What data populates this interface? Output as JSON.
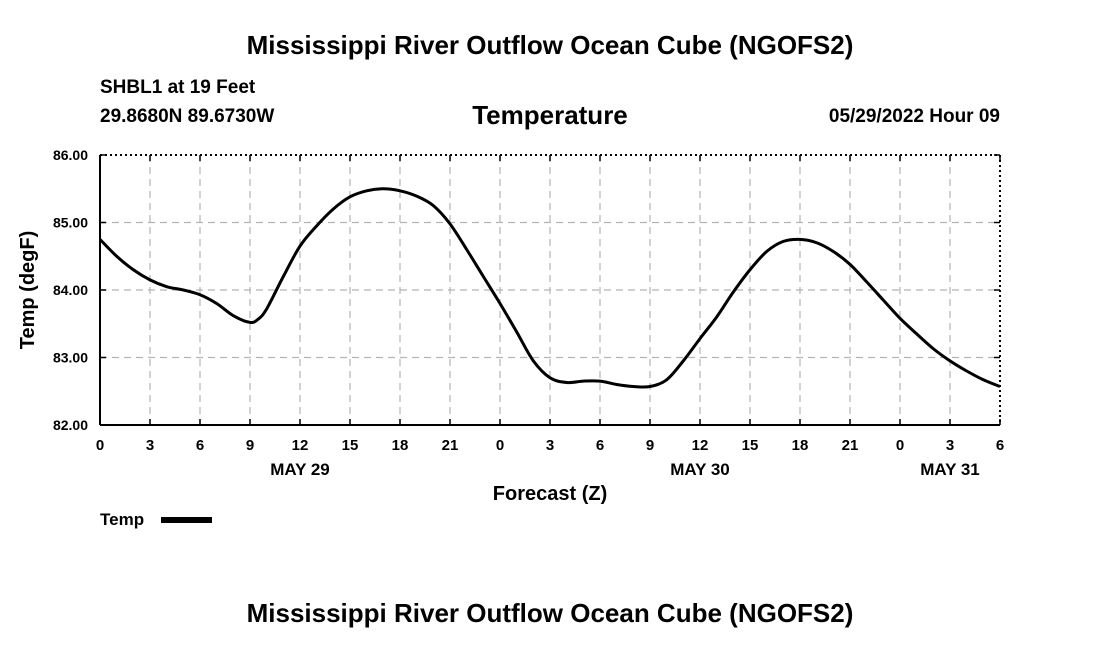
{
  "header": {
    "title": "Mississippi River Outflow Ocean Cube (NGOFS2)",
    "station": "SHBL1 at 19 Feet",
    "coords": "29.8680N  89.6730W",
    "subtitle": "Temperature",
    "datetime": "05/29/2022 Hour 09"
  },
  "footer": {
    "title": "Mississippi River Outflow Ocean Cube (NGOFS2)"
  },
  "chart_data": {
    "type": "line",
    "title": "Temperature",
    "xlabel": "Forecast (Z)",
    "ylabel": "Temp (degF)",
    "xlim": [
      0,
      54
    ],
    "ylim": [
      82.0,
      86.0
    ],
    "x_ticks": [
      0,
      3,
      6,
      9,
      12,
      15,
      18,
      21,
      24,
      27,
      30,
      33,
      36,
      39,
      42,
      45,
      48,
      51,
      54
    ],
    "x_tick_labels": [
      "0",
      "3",
      "6",
      "9",
      "12",
      "15",
      "18",
      "21",
      "0",
      "3",
      "6",
      "9",
      "12",
      "15",
      "18",
      "21",
      "0",
      "3",
      "6"
    ],
    "date_labels": [
      {
        "x": 12,
        "label": "MAY 29"
      },
      {
        "x": 36,
        "label": "MAY 30"
      },
      {
        "x": 51,
        "label": "MAY 31"
      }
    ],
    "y_ticks": [
      82.0,
      83.0,
      84.0,
      85.0,
      86.0
    ],
    "y_tick_labels": [
      "82.00",
      "83.00",
      "84.00",
      "85.00",
      "86.00"
    ],
    "grid": true,
    "legend": "bottom-left",
    "series": [
      {
        "name": "Temp",
        "color": "#000000",
        "x": [
          0,
          1,
          2,
          3,
          4,
          5,
          6,
          7,
          8,
          9,
          9.5,
          10,
          11,
          12,
          13,
          14,
          15,
          16,
          17,
          18,
          19,
          20,
          21,
          22,
          23,
          24,
          25,
          26,
          27,
          28,
          29,
          30,
          31,
          32,
          33,
          34,
          35,
          36,
          37,
          38,
          39,
          40,
          41,
          42,
          43,
          44,
          45,
          46,
          47,
          48,
          49,
          50,
          51,
          52,
          53,
          54
        ],
        "values": [
          84.75,
          84.5,
          84.3,
          84.15,
          84.05,
          84.0,
          83.93,
          83.8,
          83.62,
          83.52,
          83.57,
          83.72,
          84.2,
          84.65,
          84.95,
          85.2,
          85.38,
          85.47,
          85.5,
          85.47,
          85.39,
          85.25,
          84.98,
          84.6,
          84.2,
          83.8,
          83.38,
          82.95,
          82.7,
          82.63,
          82.65,
          82.65,
          82.6,
          82.57,
          82.57,
          82.67,
          82.95,
          83.28,
          83.6,
          83.97,
          84.3,
          84.57,
          84.72,
          84.75,
          84.7,
          84.57,
          84.38,
          84.12,
          83.85,
          83.58,
          83.35,
          83.13,
          82.95,
          82.8,
          82.67,
          82.57
        ]
      }
    ]
  }
}
